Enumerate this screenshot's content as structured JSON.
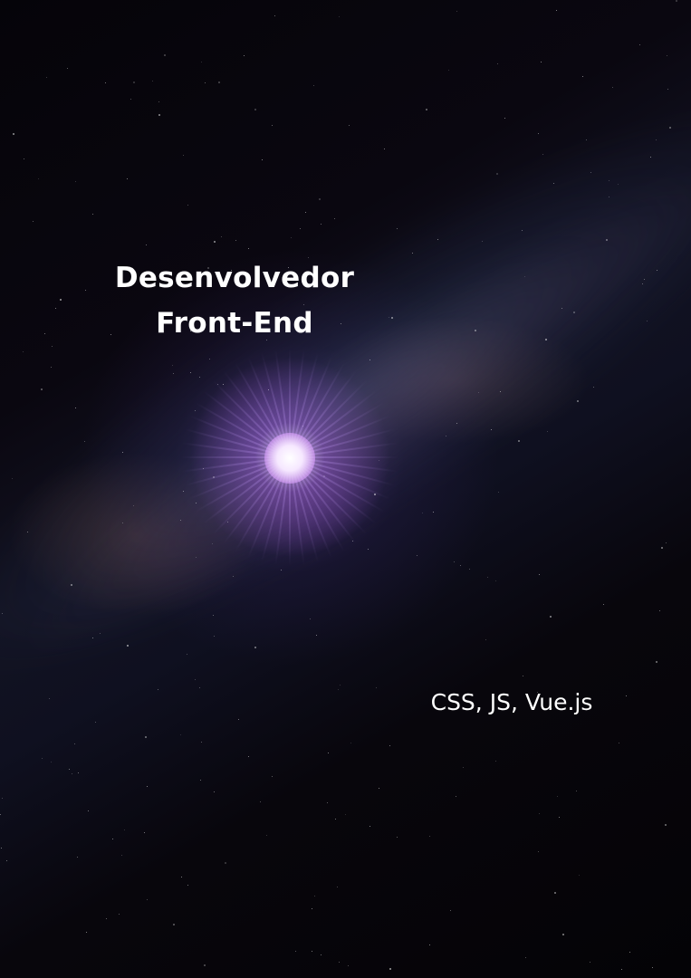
{
  "poster": {
    "title_line1": "Desenvolvedor",
    "title_line2": "Front-End",
    "skills": "CSS, JS, Vue.js"
  },
  "colors": {
    "background": "#07050a",
    "text": "#ffffff",
    "nebula_glow": "#b05ce6",
    "milky_way": "#465f8c"
  }
}
